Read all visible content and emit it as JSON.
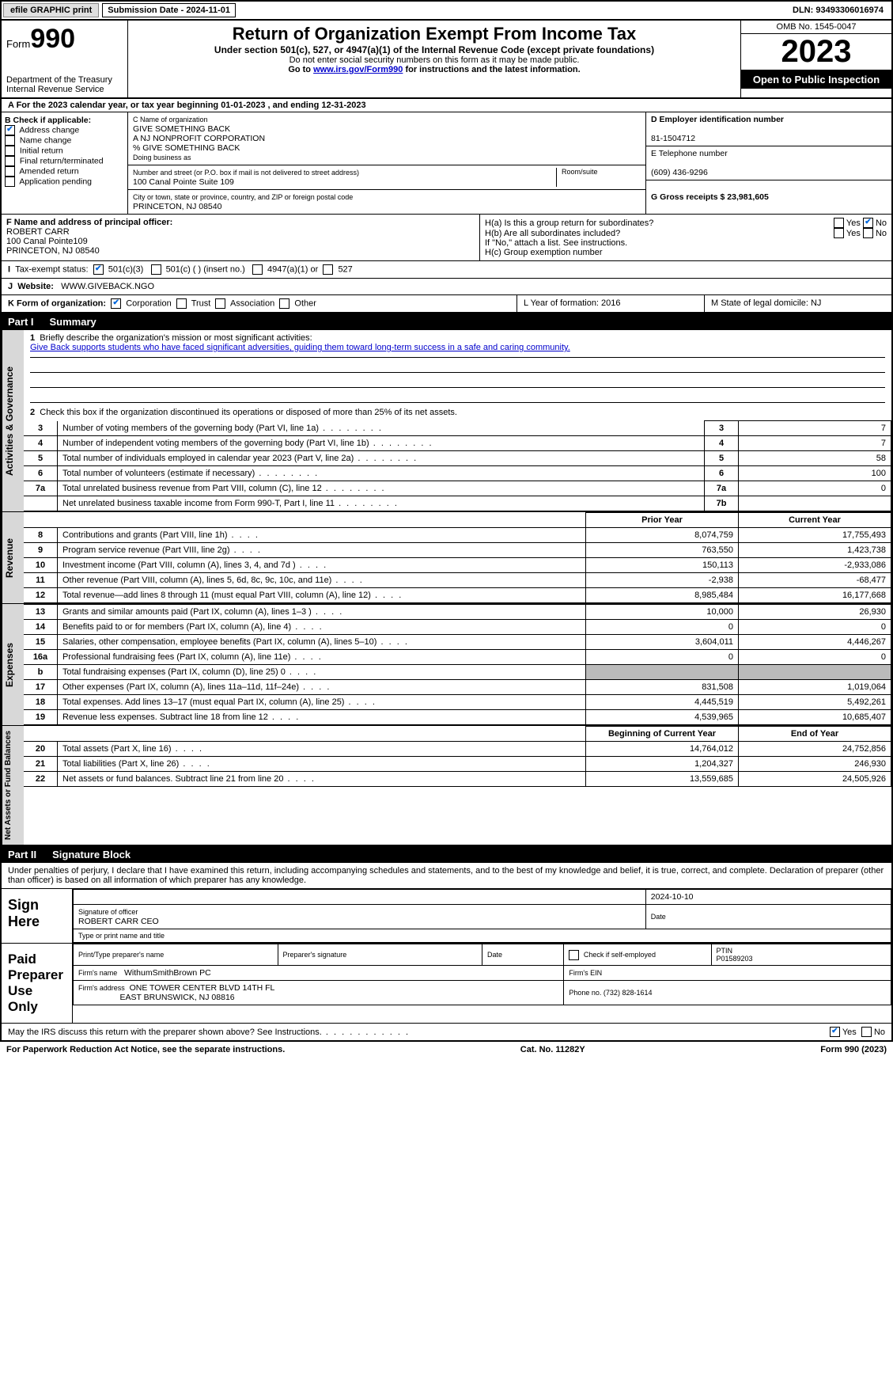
{
  "topbar": {
    "efile": "efile GRAPHIC print",
    "submission_label": "Submission Date - 2024-11-01",
    "dln_label": "DLN: 93493306016974"
  },
  "header": {
    "form_prefix": "Form",
    "form_number": "990",
    "dept1": "Department of the Treasury",
    "dept2": "Internal Revenue Service",
    "title": "Return of Organization Exempt From Income Tax",
    "sub": "Under section 501(c), 527, or 4947(a)(1) of the Internal Revenue Code (except private foundations)",
    "warn": "Do not enter social security numbers on this form as it may be made public.",
    "goto": "Go to ",
    "goto_link": "www.irs.gov/Form990",
    "goto2": " for instructions and the latest information.",
    "omb": "OMB No. 1545-0047",
    "year": "2023",
    "open": "Open to Public Inspection"
  },
  "sectionA": {
    "a": "A For the 2023 calendar year, or tax year beginning 01-01-2023    , and ending 12-31-2023",
    "b_label": "B Check if applicable:",
    "b_items": [
      "Address change",
      "Name change",
      "Initial return",
      "Final return/terminated",
      "Amended return",
      "Application pending"
    ],
    "b_checked": [
      true,
      false,
      false,
      false,
      false,
      false
    ],
    "c_label": "C Name of organization",
    "c_name1": "GIVE SOMETHING BACK",
    "c_name2": "A NJ NONPROFIT CORPORATION",
    "c_name3": "% GIVE SOMETHING BACK",
    "dba": "Doing business as",
    "street_label": "Number and street (or P.O. box if mail is not delivered to street address)",
    "room_label": "Room/suite",
    "street": "100 Canal Pointe Suite 109",
    "city_label": "City or town, state or province, country, and ZIP or foreign postal code",
    "city": "PRINCETON, NJ  08540",
    "d_label": "D Employer identification number",
    "d_val": "81-1504712",
    "e_label": "E Telephone number",
    "e_val": "(609) 436-9296",
    "g_label": "G Gross receipts $ 23,981,605",
    "f_label": "F  Name and address of principal officer:",
    "f_name": "ROBERT CARR",
    "f_addr1": "100 Canal Pointe109",
    "f_addr2": "PRINCETON, NJ  08540",
    "ha": "H(a)  Is this a group return for subordinates?",
    "hb": "H(b)  Are all subordinates included?",
    "hb_note": "If \"No,\" attach a list. See instructions.",
    "hc": "H(c)  Group exemption number",
    "yes": "Yes",
    "no": "No",
    "i_label": "Tax-exempt status:",
    "i501c3": "501(c)(3)",
    "i501c": "501(c) (  ) (insert no.)",
    "i4947": "4947(a)(1) or",
    "i527": "527",
    "j_label": "Website:",
    "j_val": "WWW.GIVEBACK.NGO",
    "k_label": "K Form of organization:",
    "k_corp": "Corporation",
    "k_trust": "Trust",
    "k_assoc": "Association",
    "k_other": "Other",
    "l_label": "L Year of formation: 2016",
    "m_label": "M State of legal domicile: NJ"
  },
  "part1": {
    "banner": "Part I",
    "title": "Summary",
    "q1": "Briefly describe the organization's mission or most significant activities:",
    "mission": "Give Back supports students who have faced significant adversities, guiding them toward long-term success in a safe and caring community.",
    "q2": "Check this box      if the organization discontinued its operations or disposed of more than 25% of its net assets.",
    "side1": "Activities & Governance",
    "side2": "Revenue",
    "side3": "Expenses",
    "side4": "Net Assets or Fund Balances",
    "rows_gov": [
      {
        "n": "3",
        "label": "Number of voting members of the governing body (Part VI, line 1a)",
        "box": "3",
        "val": "7"
      },
      {
        "n": "4",
        "label": "Number of independent voting members of the governing body (Part VI, line 1b)",
        "box": "4",
        "val": "7"
      },
      {
        "n": "5",
        "label": "Total number of individuals employed in calendar year 2023 (Part V, line 2a)",
        "box": "5",
        "val": "58"
      },
      {
        "n": "6",
        "label": "Total number of volunteers (estimate if necessary)",
        "box": "6",
        "val": "100"
      },
      {
        "n": "7a",
        "label": "Total unrelated business revenue from Part VIII, column (C), line 12",
        "box": "7a",
        "val": "0"
      },
      {
        "n": "",
        "label": "Net unrelated business taxable income from Form 990-T, Part I, line 11",
        "box": "7b",
        "val": ""
      }
    ],
    "col_prior": "Prior Year",
    "col_current": "Current Year",
    "rows_rev": [
      {
        "n": "8",
        "label": "Contributions and grants (Part VIII, line 1h)",
        "prior": "8,074,759",
        "cur": "17,755,493"
      },
      {
        "n": "9",
        "label": "Program service revenue (Part VIII, line 2g)",
        "prior": "763,550",
        "cur": "1,423,738"
      },
      {
        "n": "10",
        "label": "Investment income (Part VIII, column (A), lines 3, 4, and 7d )",
        "prior": "150,113",
        "cur": "-2,933,086"
      },
      {
        "n": "11",
        "label": "Other revenue (Part VIII, column (A), lines 5, 6d, 8c, 9c, 10c, and 11e)",
        "prior": "-2,938",
        "cur": "-68,477"
      },
      {
        "n": "12",
        "label": "Total revenue—add lines 8 through 11 (must equal Part VIII, column (A), line 12)",
        "prior": "8,985,484",
        "cur": "16,177,668"
      }
    ],
    "rows_exp": [
      {
        "n": "13",
        "label": "Grants and similar amounts paid (Part IX, column (A), lines 1–3 )",
        "prior": "10,000",
        "cur": "26,930"
      },
      {
        "n": "14",
        "label": "Benefits paid to or for members (Part IX, column (A), line 4)",
        "prior": "0",
        "cur": "0"
      },
      {
        "n": "15",
        "label": "Salaries, other compensation, employee benefits (Part IX, column (A), lines 5–10)",
        "prior": "3,604,011",
        "cur": "4,446,267"
      },
      {
        "n": "16a",
        "label": "Professional fundraising fees (Part IX, column (A), line 11e)",
        "prior": "0",
        "cur": "0"
      },
      {
        "n": "b",
        "label": "Total fundraising expenses (Part IX, column (D), line 25) 0",
        "prior": "SHADE",
        "cur": "SHADE"
      },
      {
        "n": "17",
        "label": "Other expenses (Part IX, column (A), lines 11a–11d, 11f–24e)",
        "prior": "831,508",
        "cur": "1,019,064"
      },
      {
        "n": "18",
        "label": "Total expenses. Add lines 13–17 (must equal Part IX, column (A), line 25)",
        "prior": "4,445,519",
        "cur": "5,492,261"
      },
      {
        "n": "19",
        "label": "Revenue less expenses. Subtract line 18 from line 12",
        "prior": "4,539,965",
        "cur": "10,685,407"
      }
    ],
    "col_begin": "Beginning of Current Year",
    "col_end": "End of Year",
    "rows_net": [
      {
        "n": "20",
        "label": "Total assets (Part X, line 16)",
        "prior": "14,764,012",
        "cur": "24,752,856"
      },
      {
        "n": "21",
        "label": "Total liabilities (Part X, line 26)",
        "prior": "1,204,327",
        "cur": "246,930"
      },
      {
        "n": "22",
        "label": "Net assets or fund balances. Subtract line 21 from line 20",
        "prior": "13,559,685",
        "cur": "24,505,926"
      }
    ]
  },
  "part2": {
    "banner": "Part II",
    "title": "Signature Block",
    "penalty": "Under penalties of perjury, I declare that I have examined this return, including accompanying schedules and statements, and to the best of my knowledge and belief, it is true, correct, and complete. Declaration of preparer (other than officer) is based on all information of which preparer has any knowledge.",
    "sign_here": "Sign Here",
    "sig_date": "2024-10-10",
    "sig_officer_lbl": "Signature of officer",
    "sig_officer": "ROBERT CARR  CEO",
    "sig_type_lbl": "Type or print name and title",
    "sig_date_lbl": "Date",
    "paid_label": "Paid Preparer Use Only",
    "prep_name_lbl": "Print/Type preparer's name",
    "prep_sig_lbl": "Preparer's signature",
    "date_lbl": "Date",
    "check_self": "Check        if self-employed",
    "ptin_lbl": "PTIN",
    "ptin": "P01589203",
    "firm_name_lbl": "Firm's name",
    "firm_name": "WithumSmithBrown PC",
    "firm_ein_lbl": "Firm's EIN",
    "firm_addr_lbl": "Firm's address",
    "firm_addr1": "ONE TOWER CENTER BLVD 14TH FL",
    "firm_addr2": "EAST BRUNSWICK, NJ  08816",
    "phone_lbl": "Phone no. (732) 828-1614",
    "may_irs": "May the IRS discuss this return with the preparer shown above? See Instructions."
  },
  "footer": {
    "left": "For Paperwork Reduction Act Notice, see the separate instructions.",
    "mid": "Cat. No. 11282Y",
    "right": "Form 990 (2023)"
  }
}
